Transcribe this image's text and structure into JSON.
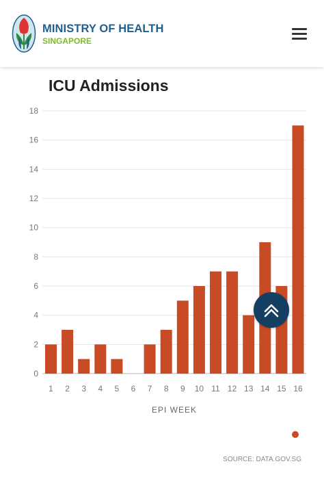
{
  "header": {
    "brand_line1": "MINISTRY OF HEALTH",
    "brand_line2": "SINGAPORE",
    "menu_icon": "hamburger-menu-icon"
  },
  "colors": {
    "bar": "#c84b26",
    "brand_blue": "#1f5f8b",
    "brand_green": "#7dbb2a",
    "scroll_button": "#123f62"
  },
  "chart_data": {
    "type": "bar",
    "title": "ICU Admissions",
    "xlabel": "EPI WEEK",
    "ylabel": "",
    "categories": [
      "1",
      "2",
      "3",
      "4",
      "5",
      "6",
      "7",
      "8",
      "9",
      "10",
      "11",
      "12",
      "13",
      "14",
      "15",
      "16"
    ],
    "values": [
      2,
      3,
      1,
      2,
      1,
      0,
      2,
      3,
      5,
      6,
      7,
      7,
      4,
      9,
      6,
      17
    ],
    "ylim": [
      0,
      18
    ],
    "yticks": [
      0,
      2,
      4,
      6,
      8,
      10,
      12,
      14,
      16,
      18
    ],
    "grid": true,
    "legend": "bottom-right",
    "source": "SOURCE: DATA.GOV.SG"
  },
  "scroll_top_icon": "chevron-double-up-icon"
}
